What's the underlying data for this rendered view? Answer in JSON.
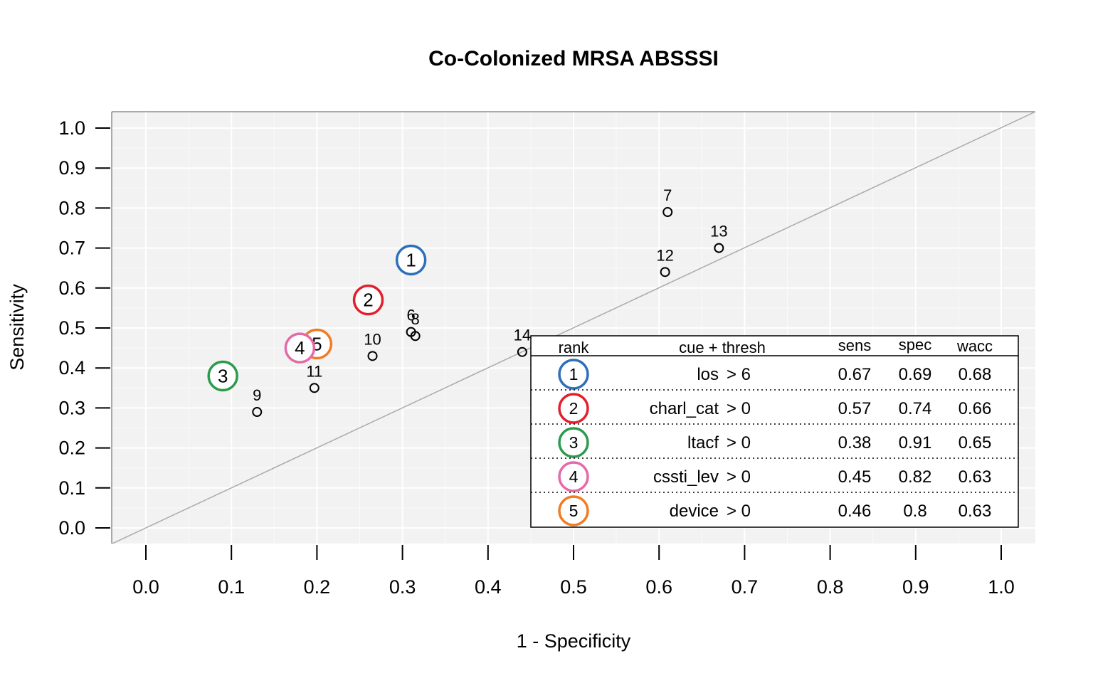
{
  "chart_data": {
    "type": "scatter",
    "title": "Co-Colonized MRSA ABSSSI",
    "xlabel": "1 - Specificity",
    "ylabel": "Sensitivity",
    "xlim": [
      0,
      1
    ],
    "ylim": [
      0,
      1
    ],
    "x_ticks": [
      "0.0",
      "0.1",
      "0.2",
      "0.3",
      "0.4",
      "0.5",
      "0.6",
      "0.7",
      "0.8",
      "0.9",
      "1.0"
    ],
    "y_ticks": [
      "0.0",
      "0.1",
      "0.2",
      "0.3",
      "0.4",
      "0.5",
      "0.6",
      "0.7",
      "0.8",
      "0.9",
      "1.0"
    ],
    "grid": true,
    "diagonal_reference_line": true,
    "ranked_points": [
      {
        "rank": "1",
        "x": 0.31,
        "y": 0.67,
        "color": "#2d6fba"
      },
      {
        "rank": "2",
        "x": 0.26,
        "y": 0.57,
        "color": "#e0202f"
      },
      {
        "rank": "3",
        "x": 0.09,
        "y": 0.38,
        "color": "#2c9b4e"
      },
      {
        "rank": "5",
        "x": 0.2,
        "y": 0.46,
        "color": "#f07c23"
      },
      {
        "rank": "4",
        "x": 0.18,
        "y": 0.45,
        "color": "#e46aa8"
      }
    ],
    "other_points": [
      {
        "label": "6",
        "x": 0.31,
        "y": 0.49
      },
      {
        "label": "8",
        "x": 0.315,
        "y": 0.48
      },
      {
        "label": "7",
        "x": 0.61,
        "y": 0.79
      },
      {
        "label": "9",
        "x": 0.13,
        "y": 0.29
      },
      {
        "label": "10",
        "x": 0.265,
        "y": 0.43
      },
      {
        "label": "11",
        "x": 0.197,
        "y": 0.35
      },
      {
        "label": "12",
        "x": 0.607,
        "y": 0.64
      },
      {
        "label": "13",
        "x": 0.67,
        "y": 0.7
      },
      {
        "label": "14",
        "x": 0.44,
        "y": 0.44
      }
    ],
    "legend": {
      "position": "bottom-right",
      "headers": {
        "rank": "rank",
        "cue": "cue + thresh",
        "sens": "sens",
        "spec": "spec",
        "wacc": "wacc"
      },
      "rows": [
        {
          "rank": "1",
          "cue": "los",
          "thresh": "> 6",
          "sens": "0.67",
          "spec": "0.69",
          "wacc": "0.68",
          "color": "#2d6fba"
        },
        {
          "rank": "2",
          "cue": "charl_cat",
          "thresh": "> 0",
          "sens": "0.57",
          "spec": "0.74",
          "wacc": "0.66",
          "color": "#e0202f"
        },
        {
          "rank": "3",
          "cue": "ltacf",
          "thresh": "> 0",
          "sens": "0.38",
          "spec": "0.91",
          "wacc": "0.65",
          "color": "#2c9b4e"
        },
        {
          "rank": "4",
          "cue": "cssti_lev",
          "thresh": "> 0",
          "sens": "0.45",
          "spec": "0.82",
          "wacc": "0.63",
          "color": "#e46aa8"
        },
        {
          "rank": "5",
          "cue": "device",
          "thresh": "> 0",
          "sens": "0.46",
          "spec": "0.8",
          "wacc": "0.63",
          "color": "#f07c23"
        }
      ]
    },
    "colors": {
      "panel_background": "#f2f2f2",
      "grid": "#ffffff",
      "diagonal": "#aaaaaa",
      "points": "#000000"
    }
  }
}
